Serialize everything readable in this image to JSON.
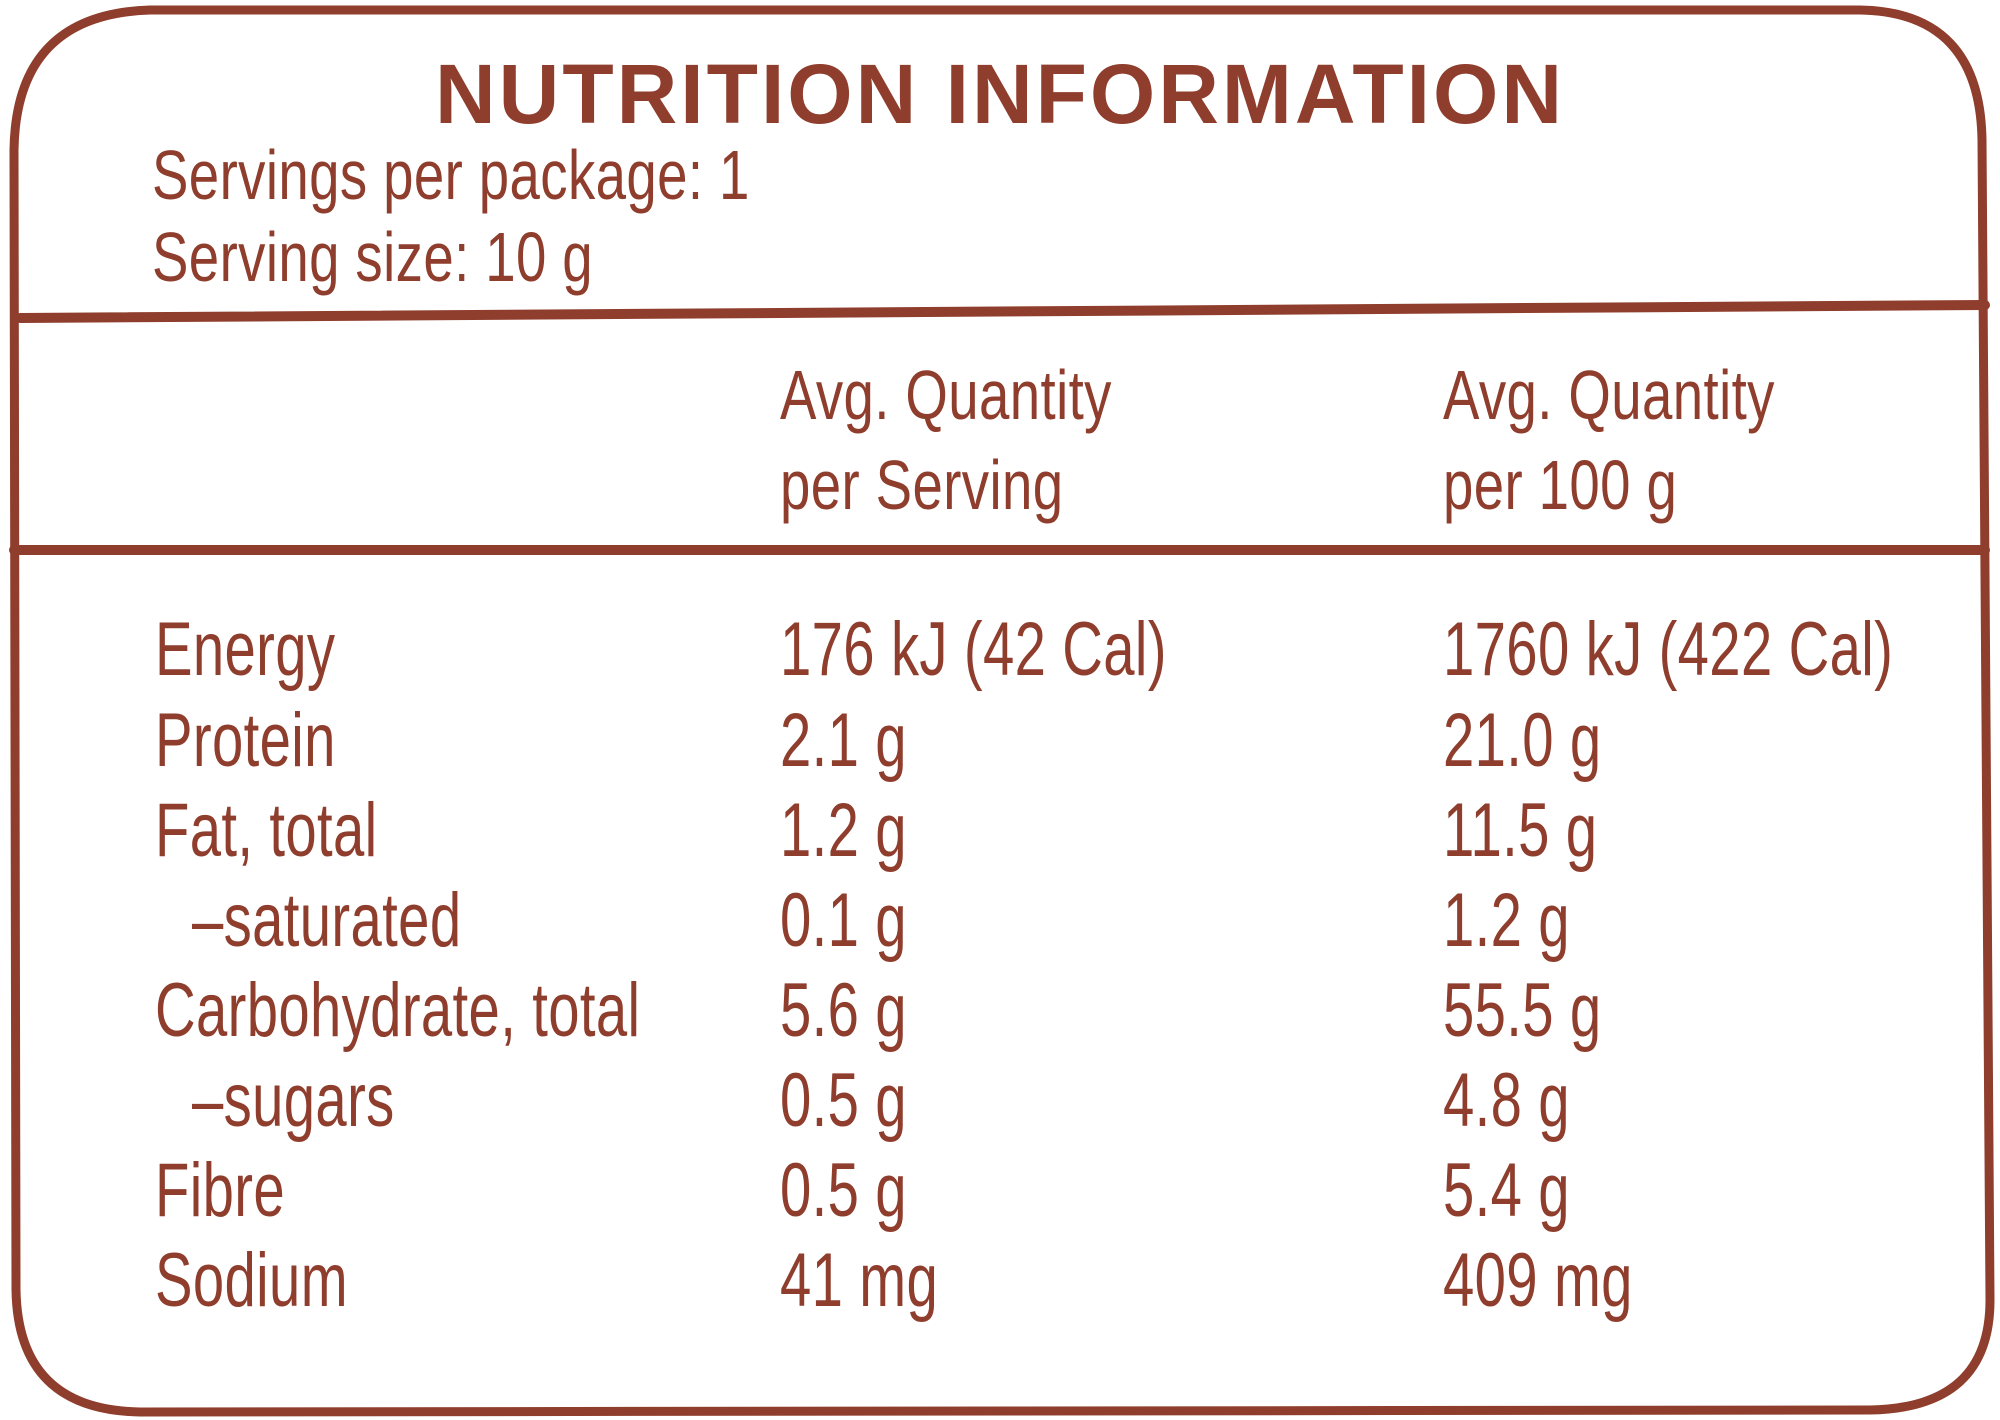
{
  "title": "NUTRITION INFORMATION",
  "servings_per_package": "Servings per package: 1",
  "serving_size": "Serving size: 10 g",
  "columns": {
    "per_serving": [
      "Avg. Quantity",
      "per Serving"
    ],
    "per_100g": [
      "Avg. Quantity",
      "per 100 g"
    ]
  },
  "rows": [
    {
      "name": "Energy",
      "per_serving": "176 kJ (42 Cal)",
      "per_100g": "1760 kJ (422 Cal)"
    },
    {
      "name": "Protein",
      "per_serving": "2.1 g",
      "per_100g": "21.0 g"
    },
    {
      "name": "Fat, total",
      "per_serving": "1.2 g",
      "per_100g": "11.5 g"
    },
    {
      "name": "–saturated",
      "per_serving": "0.1 g",
      "per_100g": "1.2 g"
    },
    {
      "name": "Carbohydrate, total",
      "per_serving": "5.6 g",
      "per_100g": "55.5 g"
    },
    {
      "name": "–sugars",
      "per_serving": "0.5 g",
      "per_100g": "4.8 g"
    },
    {
      "name": "Fibre",
      "per_serving": "0.5 g",
      "per_100g": "5.4 g"
    },
    {
      "name": "Sodium",
      "per_serving": "41 mg",
      "per_100g": "409 mg"
    }
  ],
  "colors": {
    "ink": "#8f3d2c",
    "background": "#ffffff"
  }
}
